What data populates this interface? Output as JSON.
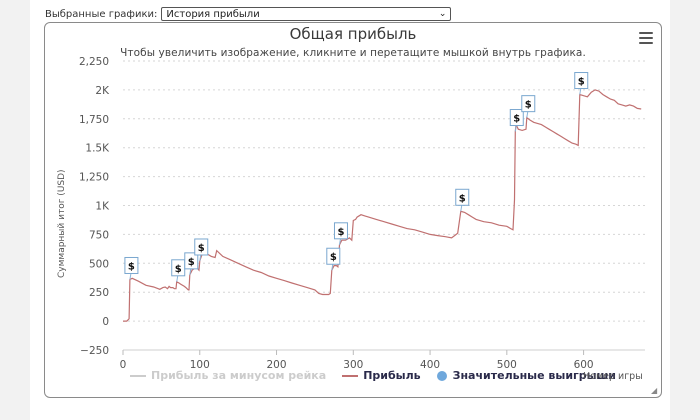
{
  "selector": {
    "label": "Выбранные графики:",
    "value": "История прибыли"
  },
  "chart_data": {
    "type": "line",
    "title": "Общая прибыль",
    "subtitle": "Чтобы увеличить изображение, кликните и перетащите мышкой внутрь графика.",
    "xlabel": "Номер игры",
    "ylabel": "Суммарный итог (USD)",
    "xlim": [
      0,
      680
    ],
    "ylim": [
      -250,
      2250
    ],
    "x_ticks": [
      0,
      100,
      200,
      300,
      400,
      500,
      600
    ],
    "y_ticks": [
      {
        "value": -250,
        "label": "−250"
      },
      {
        "value": 0,
        "label": "0"
      },
      {
        "value": 250,
        "label": "250"
      },
      {
        "value": 500,
        "label": "500"
      },
      {
        "value": 750,
        "label": "750"
      },
      {
        "value": 1000,
        "label": "1K"
      },
      {
        "value": 1250,
        "label": "1,250"
      },
      {
        "value": 1500,
        "label": "1.5K"
      },
      {
        "value": 1750,
        "label": "1,750"
      },
      {
        "value": 2000,
        "label": "2K"
      },
      {
        "value": 2250,
        "label": "2,250"
      }
    ],
    "grid": true,
    "legend_position": "bottom",
    "series": [
      {
        "name": "Прибыль за минусом рейка",
        "color": "#cccccc",
        "hidden": true,
        "points": []
      },
      {
        "name": "Прибыль",
        "color": "#c07070",
        "points": [
          [
            0,
            0
          ],
          [
            5,
            0
          ],
          [
            8,
            20
          ],
          [
            9,
            360
          ],
          [
            12,
            370
          ],
          [
            20,
            345
          ],
          [
            30,
            310
          ],
          [
            40,
            295
          ],
          [
            48,
            275
          ],
          [
            52,
            290
          ],
          [
            55,
            295
          ],
          [
            58,
            280
          ],
          [
            60,
            300
          ],
          [
            62,
            290
          ],
          [
            65,
            290
          ],
          [
            67,
            280
          ],
          [
            69,
            280
          ],
          [
            70,
            340
          ],
          [
            73,
            330
          ],
          [
            75,
            320
          ],
          [
            80,
            300
          ],
          [
            82,
            290
          ],
          [
            85,
            270
          ],
          [
            86,
            270
          ],
          [
            87,
            400
          ],
          [
            90,
            440
          ],
          [
            92,
            450
          ],
          [
            95,
            470
          ],
          [
            97,
            455
          ],
          [
            99,
            440
          ],
          [
            100,
            520
          ],
          [
            102,
            560
          ],
          [
            105,
            600
          ],
          [
            110,
            580
          ],
          [
            115,
            560
          ],
          [
            120,
            550
          ],
          [
            122,
            610
          ],
          [
            130,
            560
          ],
          [
            140,
            530
          ],
          [
            150,
            500
          ],
          [
            160,
            470
          ],
          [
            170,
            440
          ],
          [
            180,
            420
          ],
          [
            190,
            390
          ],
          [
            200,
            370
          ],
          [
            210,
            350
          ],
          [
            220,
            330
          ],
          [
            230,
            310
          ],
          [
            240,
            290
          ],
          [
            250,
            270
          ],
          [
            255,
            240
          ],
          [
            260,
            230
          ],
          [
            265,
            230
          ],
          [
            268,
            230
          ],
          [
            270,
            240
          ],
          [
            272,
            440
          ],
          [
            275,
            480
          ],
          [
            278,
            480
          ],
          [
            280,
            470
          ],
          [
            282,
            660
          ],
          [
            285,
            700
          ],
          [
            290,
            700
          ],
          [
            295,
            720
          ],
          [
            298,
            700
          ],
          [
            300,
            870
          ],
          [
            303,
            880
          ],
          [
            305,
            900
          ],
          [
            310,
            920
          ],
          [
            315,
            910
          ],
          [
            320,
            900
          ],
          [
            330,
            880
          ],
          [
            340,
            860
          ],
          [
            350,
            840
          ],
          [
            360,
            820
          ],
          [
            370,
            800
          ],
          [
            380,
            790
          ],
          [
            390,
            770
          ],
          [
            400,
            750
          ],
          [
            410,
            740
          ],
          [
            420,
            730
          ],
          [
            428,
            720
          ],
          [
            432,
            740
          ],
          [
            436,
            760
          ],
          [
            440,
            950
          ],
          [
            445,
            940
          ],
          [
            450,
            920
          ],
          [
            455,
            900
          ],
          [
            460,
            880
          ],
          [
            470,
            860
          ],
          [
            480,
            850
          ],
          [
            490,
            830
          ],
          [
            500,
            820
          ],
          [
            505,
            800
          ],
          [
            508,
            790
          ],
          [
            510,
            1050
          ],
          [
            511,
            1640
          ],
          [
            512,
            1700
          ],
          [
            515,
            1660
          ],
          [
            520,
            1650
          ],
          [
            525,
            1660
          ],
          [
            526,
            1760
          ],
          [
            530,
            1740
          ],
          [
            535,
            1720
          ],
          [
            540,
            1710
          ],
          [
            545,
            1700
          ],
          [
            550,
            1680
          ],
          [
            555,
            1660
          ],
          [
            560,
            1640
          ],
          [
            565,
            1620
          ],
          [
            570,
            1600
          ],
          [
            575,
            1580
          ],
          [
            580,
            1560
          ],
          [
            585,
            1540
          ],
          [
            590,
            1530
          ],
          [
            593,
            1520
          ],
          [
            595,
            1960
          ],
          [
            600,
            1950
          ],
          [
            605,
            1940
          ],
          [
            610,
            1980
          ],
          [
            615,
            2000
          ],
          [
            620,
            1990
          ],
          [
            625,
            1960
          ],
          [
            630,
            1940
          ],
          [
            635,
            1920
          ],
          [
            640,
            1910
          ],
          [
            645,
            1880
          ],
          [
            650,
            1870
          ],
          [
            655,
            1860
          ],
          [
            660,
            1870
          ],
          [
            665,
            1860
          ],
          [
            670,
            1840
          ],
          [
            675,
            1835
          ]
        ]
      },
      {
        "name": "Значительные выигрыши",
        "color": "#6fa8dc",
        "marker_label": "$",
        "points": [
          [
            9,
            360
          ],
          [
            70,
            340
          ],
          [
            87,
            400
          ],
          [
            100,
            520
          ],
          [
            272,
            440
          ],
          [
            282,
            660
          ],
          [
            440,
            950
          ],
          [
            511,
            1640
          ],
          [
            526,
            1760
          ],
          [
            595,
            1960
          ]
        ]
      }
    ]
  }
}
